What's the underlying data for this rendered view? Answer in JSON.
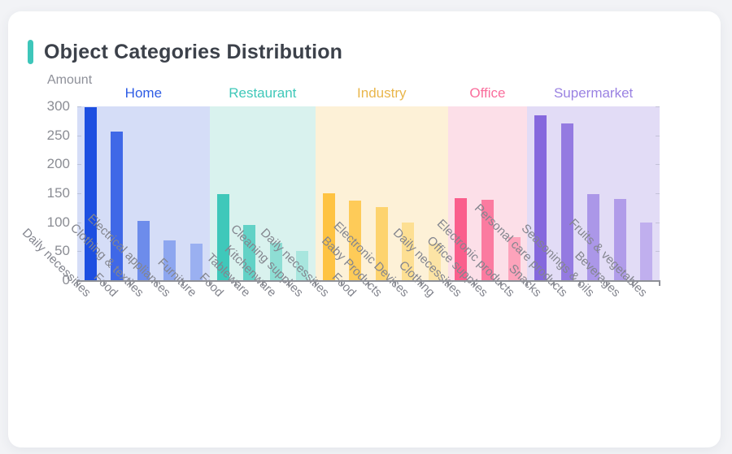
{
  "page": {
    "title": "Object Categories Distribution",
    "accent_color": "#3ec6ba",
    "card_background": "#ffffff",
    "page_background": "#f2f3f6"
  },
  "chart_data": {
    "type": "bar",
    "title": "Object Categories Distribution",
    "ylabel": "Amount",
    "xlabel": "",
    "ylim": [
      0,
      300
    ],
    "ytick_step": 50,
    "yticks": [
      0,
      50,
      100,
      150,
      200,
      250,
      300
    ],
    "grid": false,
    "legend_position": "grouped-headers-top",
    "groups": [
      {
        "name": "Home",
        "label_color": "#2e5ce5",
        "band_color": "#d5ddf7",
        "bars": [
          {
            "label": "Daily necessities",
            "value": 298,
            "color": "#1d4fe1"
          },
          {
            "label": "Food",
            "value": 257,
            "color": "#3f68e7"
          },
          {
            "label": "Clothing & textiles",
            "value": 102,
            "color": "#6d8ceb"
          },
          {
            "label": "Electrical appliances",
            "value": 68,
            "color": "#8da6ef"
          },
          {
            "label": "Furniture",
            "value": 63,
            "color": "#9ab0f1"
          }
        ]
      },
      {
        "name": "Restaurant",
        "label_color": "#3fc8b9",
        "band_color": "#d9f2ee",
        "bars": [
          {
            "label": "Food",
            "value": 148,
            "color": "#3fc8ba"
          },
          {
            "label": "Tableware",
            "value": 96,
            "color": "#62d2c6"
          },
          {
            "label": "Kitchenware",
            "value": 64,
            "color": "#8eded4"
          },
          {
            "label": "Cleaning supplies",
            "value": 50,
            "color": "#a8e6de"
          }
        ]
      },
      {
        "name": "Industry",
        "label_color": "#e9b64b",
        "band_color": "#fdf1d7",
        "bars": [
          {
            "label": "Daily necessities",
            "value": 150,
            "color": "#fec342"
          },
          {
            "label": "Food",
            "value": 138,
            "color": "#fecb58"
          },
          {
            "label": "Baby Products",
            "value": 126,
            "color": "#fdd36e"
          },
          {
            "label": "Electronic Devices",
            "value": 99,
            "color": "#fddf92"
          },
          {
            "label": "Clothing",
            "value": 63,
            "color": "#fce4a5"
          }
        ]
      },
      {
        "name": "Office",
        "label_color": "#fa6e9c",
        "band_color": "#fcdfe8",
        "bars": [
          {
            "label": "Daily necessities",
            "value": 142,
            "color": "#fa5e8c"
          },
          {
            "label": "Office supplies",
            "value": 139,
            "color": "#fb7ba0"
          },
          {
            "label": "Electronic products",
            "value": 75,
            "color": "#fda3bb"
          }
        ]
      },
      {
        "name": "Supermarket",
        "label_color": "#9a82e2",
        "band_color": "#e2dcf6",
        "bars": [
          {
            "label": "Snacks",
            "value": 285,
            "color": "#8568dd"
          },
          {
            "label": "Personal care products",
            "value": 271,
            "color": "#947ae1"
          },
          {
            "label": "Seasonings & oils",
            "value": 148,
            "color": "#ab97e8"
          },
          {
            "label": "Beverages",
            "value": 140,
            "color": "#b09ce9"
          },
          {
            "label": "Fruits & vegetables",
            "value": 100,
            "color": "#c0afee"
          }
        ]
      }
    ]
  }
}
